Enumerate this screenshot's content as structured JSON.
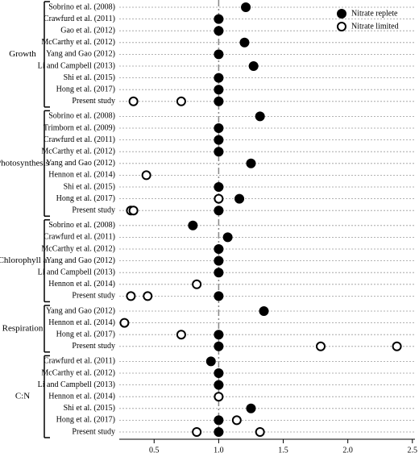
{
  "chart_data": {
    "type": "dot",
    "groups": [
      {
        "label": "Growth",
        "categories": [
          "Sobrino et al. (2008)",
          "Crawfurd et al. (2011)",
          "Gao et al. (2012)",
          "McCarthy et al. (2012)",
          "Yang and Gao (2012)",
          "Li and Campbell (2013)",
          "Shi et al. (2015)",
          "Hong et al. (2017)",
          "Present study"
        ]
      },
      {
        "label": "Photosynthesis",
        "categories": [
          "Sobrino et al. (2008)",
          "Trimborn et al. (2009)",
          "Crawfurd et al. (2011)",
          "McCarthy et al. (2012)",
          "Yang and Gao (2012)",
          "Hennon et al. (2014)",
          "Shi et al. (2015)",
          "Hong et al. (2017)",
          "Present study"
        ]
      },
      {
        "label": "Chlorophyll a",
        "categories": [
          "Sobrino et al. (2008)",
          "Crawfurd et al. (2011)",
          "McCarthy et al. (2012)",
          "Yang and Gao (2012)",
          "Li and Campbell (2013)",
          "Hennon et al. (2014)",
          "Present study"
        ]
      },
      {
        "label": "Respiration",
        "categories": [
          "Yang and Gao (2012)",
          "Hennon et al. (2014)",
          "Hong et al. (2017)",
          "Present study"
        ]
      },
      {
        "label": "C:N",
        "categories": [
          "Crawfurd et al. (2011)",
          "McCarthy et al. (2012)",
          "Li and Campbell (2013)",
          "Hennon et al. (2014)",
          "Shi et al. (2015)",
          "Hong et al. (2017)",
          "Present study"
        ]
      }
    ],
    "series": [
      {
        "name": "Nitrate replete",
        "color": "#000000",
        "filled": true,
        "values": [
          1.21,
          1.0,
          1.0,
          1.2,
          1.0,
          1.27,
          1.0,
          1.0,
          1.0,
          1.32,
          1.0,
          1.0,
          1.0,
          1.25,
          null,
          1.0,
          1.16,
          1.0,
          0.8,
          1.07,
          1.0,
          1.0,
          1.0,
          null,
          1.0,
          1.35,
          null,
          1.0,
          1.0,
          0.94,
          1.0,
          1.0,
          null,
          1.25,
          1.0,
          1.0
        ]
      },
      {
        "name": "Nitrate limited",
        "color": "#000000",
        "filled": false,
        "values": [
          null,
          null,
          null,
          null,
          null,
          null,
          null,
          null,
          [
            0.34,
            0.71
          ],
          null,
          null,
          null,
          null,
          null,
          0.44,
          null,
          1.0,
          [
            0.32,
            0.34
          ],
          null,
          null,
          null,
          null,
          null,
          0.83,
          [
            0.32,
            0.45
          ],
          null,
          0.27,
          0.71,
          [
            1.79,
            2.38
          ],
          null,
          null,
          null,
          1.0,
          null,
          1.14,
          [
            0.83,
            1.32
          ]
        ]
      }
    ],
    "reference_line": 1,
    "xlim": [
      0.23,
      2.52
    ],
    "xticks": [
      0.5,
      {
        "value": 1,
        "label": "1.0"
      },
      1.5,
      {
        "value": 2,
        "label": "2.0"
      },
      2.5
    ],
    "legend": "top-right"
  }
}
